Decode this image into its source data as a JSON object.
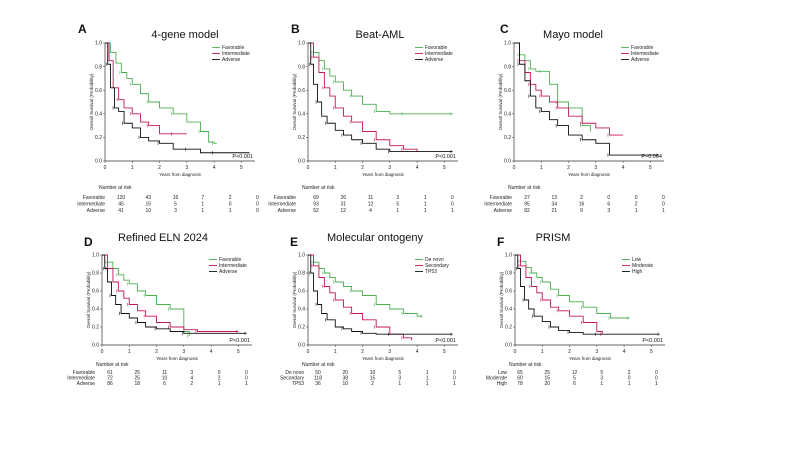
{
  "figure": {
    "x_label": "Years from diagnosis",
    "y_label": "Overall Survival (Probability)",
    "risk_header": "Number at risk",
    "x_ticks": [
      "0",
      "1",
      "2",
      "3",
      "4",
      "5"
    ],
    "y_ticks": [
      "0.0",
      "0.2",
      "0.4",
      "0.6",
      "0.8",
      "1.0"
    ]
  },
  "colors": {
    "green": "#4caf50",
    "red": "#c2185b",
    "black": "#111111"
  },
  "chart_data": [
    {
      "type": "line",
      "panel": "A",
      "title": "4-gene model",
      "p_value": "P<0.001",
      "xlabel": "Years from diagnosis",
      "ylabel": "Overall Survival (Probability)",
      "xlim": [
        0,
        5.5
      ],
      "ylim": [
        0,
        1
      ],
      "legend_position": "top-right",
      "series": [
        {
          "name": "Favorable",
          "color": "#4caf50",
          "x": [
            0,
            0.2,
            0.4,
            0.6,
            0.8,
            1.0,
            1.3,
            1.6,
            2.0,
            2.5,
            3.0,
            3.5,
            3.8,
            4.0,
            4.1
          ],
          "y": [
            1.0,
            0.92,
            0.83,
            0.75,
            0.7,
            0.65,
            0.57,
            0.5,
            0.45,
            0.4,
            0.33,
            0.25,
            0.16,
            0.15,
            0.15
          ]
        },
        {
          "name": "Intermediate",
          "color": "#c2185b",
          "x": [
            0,
            0.15,
            0.3,
            0.5,
            0.7,
            1.0,
            1.3,
            1.6,
            2.0,
            2.5,
            3.0
          ],
          "y": [
            1.0,
            0.85,
            0.62,
            0.52,
            0.45,
            0.4,
            0.33,
            0.3,
            0.23,
            0.23,
            0.23
          ]
        },
        {
          "name": "Adverse",
          "color": "#111111",
          "x": [
            0,
            0.1,
            0.2,
            0.35,
            0.5,
            0.7,
            1.0,
            1.3,
            1.6,
            2.0,
            2.5,
            3.0,
            3.5,
            4.0,
            5.3
          ],
          "y": [
            1.0,
            0.82,
            0.62,
            0.45,
            0.42,
            0.32,
            0.28,
            0.2,
            0.17,
            0.15,
            0.1,
            0.1,
            0.07,
            0.07,
            0.07
          ]
        }
      ],
      "risk_table": {
        "header": "Number at risk",
        "rows": [
          {
            "label": "Favorable",
            "values": [
              "120",
              "43",
              "16",
              "7",
              "2",
              "0"
            ]
          },
          {
            "label": "Intermediate",
            "values": [
              "45",
              "15",
              "5",
              "1",
              "0",
              "0"
            ]
          },
          {
            "label": "Adverse",
            "values": [
              "41",
              "10",
              "3",
              "1",
              "1",
              "0"
            ]
          }
        ]
      }
    },
    {
      "type": "line",
      "panel": "B",
      "title": "Beat-AML",
      "p_value": "P<0.001",
      "xlabel": "Years from diagnosis",
      "ylabel": "Overall Survival (Probability)",
      "xlim": [
        0,
        5.5
      ],
      "ylim": [
        0,
        1
      ],
      "legend_position": "top-right",
      "series": [
        {
          "name": "Favorable",
          "color": "#4caf50",
          "x": [
            0,
            0.2,
            0.4,
            0.6,
            0.8,
            1.0,
            1.3,
            1.6,
            2.0,
            2.5,
            3.0,
            3.5,
            4.0,
            5.3
          ],
          "y": [
            1.0,
            0.92,
            0.85,
            0.78,
            0.72,
            0.67,
            0.6,
            0.55,
            0.48,
            0.42,
            0.4,
            0.4,
            0.4,
            0.4
          ]
        },
        {
          "name": "Intermediate",
          "color": "#c2185b",
          "x": [
            0,
            0.2,
            0.4,
            0.6,
            0.8,
            1.0,
            1.3,
            1.6,
            2.0,
            2.5,
            3.0,
            3.5,
            4.0
          ],
          "y": [
            1.0,
            0.88,
            0.75,
            0.62,
            0.55,
            0.45,
            0.38,
            0.33,
            0.25,
            0.18,
            0.13,
            0.1,
            0.08
          ]
        },
        {
          "name": "Adverse",
          "color": "#111111",
          "x": [
            0,
            0.1,
            0.2,
            0.35,
            0.5,
            0.7,
            1.0,
            1.3,
            1.6,
            2.0,
            2.5,
            3.0,
            4.0,
            5.3
          ],
          "y": [
            1.0,
            0.82,
            0.65,
            0.5,
            0.38,
            0.32,
            0.26,
            0.22,
            0.18,
            0.15,
            0.1,
            0.08,
            0.08,
            0.08
          ]
        }
      ],
      "risk_table": {
        "header": "Number at risk",
        "rows": [
          {
            "label": "Favorable",
            "values": [
              "69",
              "26",
              "11",
              "3",
              "1",
              "0"
            ]
          },
          {
            "label": "Intermediate",
            "values": [
              "93",
              "31",
              "12",
              "5",
              "1",
              "0"
            ]
          },
          {
            "label": "Adverse",
            "values": [
              "52",
              "12",
              "4",
              "1",
              "1",
              "1"
            ]
          }
        ]
      }
    },
    {
      "type": "line",
      "panel": "C",
      "title": "Mayo model",
      "p_value": "P=0.004",
      "xlabel": "Years from diagnosis",
      "ylabel": "Overall Survival (Probability)",
      "xlim": [
        0,
        5.5
      ],
      "ylim": [
        0,
        1
      ],
      "legend_position": "top-right",
      "series": [
        {
          "name": "Favorable",
          "color": "#4caf50",
          "x": [
            0,
            0.2,
            0.4,
            0.6,
            0.8,
            1.0,
            1.3,
            1.6,
            2.0,
            2.5,
            2.8
          ],
          "y": [
            1.0,
            0.9,
            0.85,
            0.78,
            0.76,
            0.76,
            0.65,
            0.5,
            0.45,
            0.3,
            0.25
          ]
        },
        {
          "name": "Intermediate",
          "color": "#c2185b",
          "x": [
            0,
            0.2,
            0.4,
            0.6,
            0.8,
            1.0,
            1.3,
            1.6,
            2.0,
            2.5,
            3.0,
            3.5,
            4.0
          ],
          "y": [
            1.0,
            0.85,
            0.75,
            0.65,
            0.6,
            0.55,
            0.5,
            0.45,
            0.38,
            0.32,
            0.28,
            0.22,
            0.22
          ]
        },
        {
          "name": "Adverse",
          "color": "#111111",
          "x": [
            0,
            0.2,
            0.4,
            0.6,
            0.8,
            1.0,
            1.3,
            1.6,
            2.0,
            2.5,
            3.0,
            3.5,
            4.0,
            5.3
          ],
          "y": [
            1.0,
            0.82,
            0.68,
            0.55,
            0.45,
            0.42,
            0.35,
            0.3,
            0.22,
            0.18,
            0.15,
            0.05,
            0.05,
            0.05
          ]
        }
      ],
      "risk_table": {
        "header": "Number at risk",
        "rows": [
          {
            "label": "Favorable",
            "values": [
              "27",
              "13",
              "2",
              "0",
              "0",
              "0"
            ]
          },
          {
            "label": "Intermediate",
            "values": [
              "95",
              "34",
              "16",
              "6",
              "2",
              "0"
            ]
          },
          {
            "label": "Adverse",
            "values": [
              "82",
              "21",
              "9",
              "3",
              "1",
              "1"
            ]
          }
        ]
      }
    },
    {
      "type": "line",
      "panel": "D",
      "title": "Refined ELN 2024",
      "p_value": "P<0.001",
      "xlabel": "Years from diagnosis",
      "ylabel": "Overall Survival (Probability)",
      "xlim": [
        0,
        5.5
      ],
      "ylim": [
        0,
        1
      ],
      "legend_position": "top-right",
      "series": [
        {
          "name": "Favorable",
          "color": "#4caf50",
          "x": [
            0,
            0.2,
            0.4,
            0.6,
            0.8,
            1.0,
            1.3,
            1.6,
            2.0,
            2.5,
            3.0,
            3.2
          ],
          "y": [
            1.0,
            0.92,
            0.85,
            0.78,
            0.72,
            0.68,
            0.6,
            0.55,
            0.45,
            0.4,
            0.15,
            0.1
          ]
        },
        {
          "name": "Intermediate",
          "color": "#c2185b",
          "x": [
            0,
            0.2,
            0.4,
            0.6,
            0.8,
            1.0,
            1.3,
            1.6,
            2.0,
            2.5,
            3.0,
            3.5,
            4.0,
            5.0
          ],
          "y": [
            1.0,
            0.85,
            0.7,
            0.6,
            0.52,
            0.45,
            0.38,
            0.32,
            0.25,
            0.2,
            0.17,
            0.15,
            0.15,
            0.15
          ]
        },
        {
          "name": "Adverse",
          "color": "#111111",
          "x": [
            0,
            0.1,
            0.2,
            0.35,
            0.5,
            0.7,
            1.0,
            1.3,
            1.6,
            2.0,
            2.5,
            3.0,
            4.0,
            5.3
          ],
          "y": [
            1.0,
            0.85,
            0.7,
            0.55,
            0.45,
            0.35,
            0.3,
            0.25,
            0.2,
            0.18,
            0.15,
            0.13,
            0.13,
            0.13
          ]
        }
      ],
      "risk_table": {
        "header": "Number at risk",
        "rows": [
          {
            "label": "Favorable",
            "values": [
              "61",
              "25",
              "11",
              "3",
              "0",
              "0"
            ]
          },
          {
            "label": "Intermediate",
            "values": [
              "72",
              "25",
              "10",
              "4",
              "2",
              "0"
            ]
          },
          {
            "label": "Adverse",
            "values": [
              "86",
              "18",
              "6",
              "2",
              "1",
              "1"
            ]
          }
        ]
      }
    },
    {
      "type": "line",
      "panel": "E",
      "title": "Molecular ontogeny",
      "p_value": "P<0.001",
      "xlabel": "Years from diagnosis",
      "ylabel": "Overall Survival (Probability)",
      "xlim": [
        0,
        5.5
      ],
      "ylim": [
        0,
        1
      ],
      "legend_position": "top-right",
      "series": [
        {
          "name": "De novo",
          "color": "#4caf50",
          "x": [
            0,
            0.2,
            0.4,
            0.6,
            0.8,
            1.0,
            1.3,
            1.6,
            2.0,
            2.5,
            3.0,
            3.5,
            4.0,
            4.2
          ],
          "y": [
            1.0,
            0.92,
            0.85,
            0.8,
            0.75,
            0.7,
            0.65,
            0.6,
            0.55,
            0.45,
            0.4,
            0.35,
            0.32,
            0.32
          ]
        },
        {
          "name": "Secondary",
          "color": "#c2185b",
          "x": [
            0,
            0.2,
            0.4,
            0.6,
            0.8,
            1.0,
            1.3,
            1.6,
            2.0,
            2.5,
            3.0,
            3.5,
            3.8
          ],
          "y": [
            1.0,
            0.88,
            0.75,
            0.65,
            0.58,
            0.5,
            0.42,
            0.35,
            0.28,
            0.2,
            0.12,
            0.08,
            0.05
          ]
        },
        {
          "name": "TP53",
          "color": "#111111",
          "x": [
            0,
            0.1,
            0.2,
            0.35,
            0.5,
            0.7,
            1.0,
            1.3,
            1.6,
            2.0,
            2.5,
            3.0,
            4.0,
            5.3
          ],
          "y": [
            1.0,
            0.8,
            0.6,
            0.45,
            0.35,
            0.28,
            0.2,
            0.18,
            0.15,
            0.13,
            0.12,
            0.12,
            0.12,
            0.12
          ]
        }
      ],
      "risk_table": {
        "header": "Number at risk",
        "rows": [
          {
            "label": "De novo",
            "values": [
              "50",
              "20",
              "10",
              "5",
              "1",
              "0"
            ]
          },
          {
            "label": "Secondary",
            "values": [
              "118",
              "38",
              "15",
              "3",
              "1",
              "0"
            ]
          },
          {
            "label": "TP53",
            "values": [
              "36",
              "10",
              "2",
              "1",
              "1",
              "1"
            ]
          }
        ]
      }
    },
    {
      "type": "line",
      "panel": "F",
      "title": "PRISM",
      "p_value": "P<0.001",
      "xlabel": "Years from diagnosis",
      "ylabel": "Overall Survival (Probability)",
      "xlim": [
        0,
        5.5
      ],
      "ylim": [
        0,
        1
      ],
      "legend_position": "top-right",
      "series": [
        {
          "name": "Low",
          "color": "#4caf50",
          "x": [
            0,
            0.2,
            0.4,
            0.6,
            0.8,
            1.0,
            1.3,
            1.6,
            2.0,
            2.5,
            3.0,
            3.5,
            4.0,
            4.2
          ],
          "y": [
            1.0,
            0.93,
            0.86,
            0.8,
            0.75,
            0.7,
            0.62,
            0.55,
            0.48,
            0.42,
            0.35,
            0.3,
            0.3,
            0.3
          ]
        },
        {
          "name": "Moderate",
          "color": "#c2185b",
          "x": [
            0,
            0.2,
            0.4,
            0.6,
            0.8,
            1.0,
            1.3,
            1.6,
            2.0,
            2.5,
            3.0,
            3.2
          ],
          "y": [
            1.0,
            0.88,
            0.75,
            0.65,
            0.58,
            0.5,
            0.42,
            0.38,
            0.32,
            0.25,
            0.15,
            0.12
          ]
        },
        {
          "name": "High",
          "color": "#111111",
          "x": [
            0,
            0.1,
            0.2,
            0.35,
            0.5,
            0.7,
            1.0,
            1.3,
            1.6,
            2.0,
            2.5,
            3.0,
            4.0,
            5.3
          ],
          "y": [
            1.0,
            0.85,
            0.65,
            0.5,
            0.4,
            0.32,
            0.26,
            0.2,
            0.16,
            0.14,
            0.12,
            0.12,
            0.12,
            0.12
          ]
        }
      ],
      "risk_table": {
        "header": "Number at risk",
        "rows": [
          {
            "label": "Low",
            "values": [
              "65",
              "25",
              "12",
              "5",
              "2",
              "0"
            ]
          },
          {
            "label": "Moderate",
            "values": [
              "60",
              "15",
              "5",
              "3",
              "0",
              "0"
            ]
          },
          {
            "label": "High",
            "values": [
              "78",
              "20",
              "6",
              "1",
              "1",
              "1"
            ]
          }
        ]
      }
    }
  ]
}
